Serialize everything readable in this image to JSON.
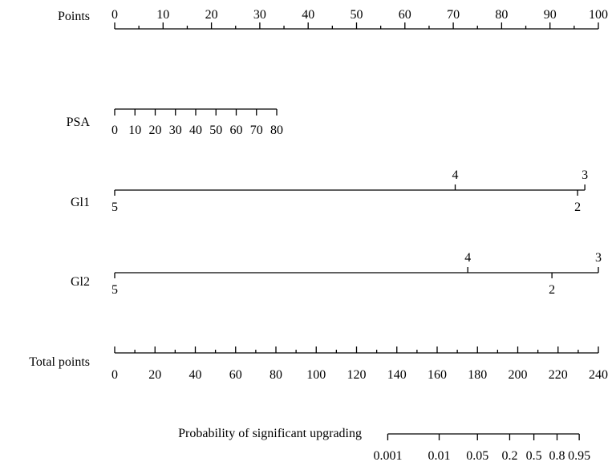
{
  "chart_data": {
    "type": "nomogram",
    "rows": [
      {
        "label": "Points",
        "ticks": [
          "0",
          "10",
          "20",
          "30",
          "40",
          "50",
          "60",
          "70",
          "80",
          "90",
          "100"
        ],
        "minor_ticks": true
      },
      {
        "label": "PSA",
        "ticks": [
          "0",
          "10",
          "20",
          "30",
          "40",
          "50",
          "60",
          "70",
          "80"
        ],
        "point_range": [
          0,
          33.5
        ]
      },
      {
        "label": "Gl1",
        "ticks": [
          {
            "label": "5",
            "points": 0
          },
          {
            "label": "4",
            "points": 70.4
          },
          {
            "label": "2",
            "points": 95.7
          },
          {
            "label": "3",
            "points": 97.2
          }
        ]
      },
      {
        "label": "Gl2",
        "ticks": [
          {
            "label": "5",
            "points": 0
          },
          {
            "label": "4",
            "points": 73
          },
          {
            "label": "2",
            "points": 90.4
          },
          {
            "label": "3",
            "points": 100
          }
        ]
      },
      {
        "label": "Total points",
        "ticks": [
          "0",
          "20",
          "40",
          "60",
          "80",
          "100",
          "120",
          "140",
          "160",
          "180",
          "200",
          "220",
          "240"
        ],
        "minor_ticks": true
      },
      {
        "label": "Probability of significant upgrading",
        "ticks": [
          {
            "label": "0.001",
            "total_points": 135.5
          },
          {
            "label": "0.01",
            "total_points": 161
          },
          {
            "label": "0.05",
            "total_points": 180
          },
          {
            "label": "0.2",
            "total_points": 196
          },
          {
            "label": "0.5",
            "total_points": 208
          },
          {
            "label": "0.8",
            "total_points": 219.5
          },
          {
            "label": "0.95",
            "total_points": 230.5
          }
        ]
      }
    ]
  }
}
